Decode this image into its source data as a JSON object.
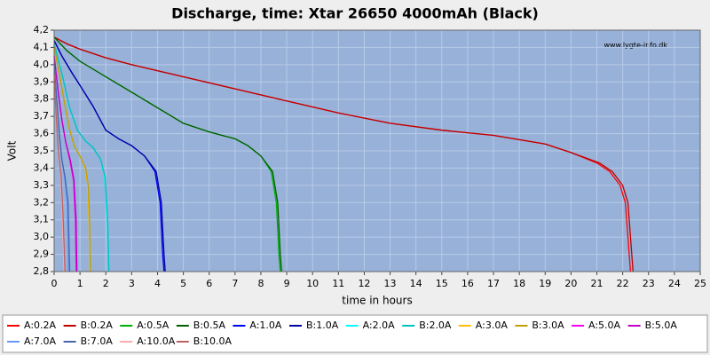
{
  "chart_data": {
    "type": "line",
    "title": "Discharge, time: Xtar 26650 4000mAh (Black)",
    "watermark": "www.lygte-info.dk",
    "xlabel": "time in hours",
    "ylabel": "Volt",
    "xlim": [
      0,
      25
    ],
    "xticks": [
      0,
      1,
      2,
      3,
      4,
      5,
      6,
      7,
      8,
      9,
      10,
      11,
      12,
      13,
      14,
      15,
      16,
      17,
      18,
      19,
      20,
      21,
      22,
      23,
      24,
      25
    ],
    "ylim": [
      2.8,
      4.2
    ],
    "yticks": [
      {
        "value": 2.8,
        "label": "2,8"
      },
      {
        "value": 2.9,
        "label": "2,9"
      },
      {
        "value": 3.0,
        "label": "3,0"
      },
      {
        "value": 3.1,
        "label": "3,1"
      },
      {
        "value": 3.2,
        "label": "3,2"
      },
      {
        "value": 3.3,
        "label": "3,3"
      },
      {
        "value": 3.4,
        "label": "3,4"
      },
      {
        "value": 3.5,
        "label": "3,5"
      },
      {
        "value": 3.6,
        "label": "3,6"
      },
      {
        "value": 3.7,
        "label": "3,7"
      },
      {
        "value": 3.8,
        "label": "3,8"
      },
      {
        "value": 3.9,
        "label": "3,9"
      },
      {
        "value": 4.0,
        "label": "4,0"
      },
      {
        "value": 4.1,
        "label": "4,1"
      },
      {
        "value": 4.2,
        "label": "4,2"
      }
    ],
    "grid": true,
    "series": [
      {
        "name": "A:0.2A",
        "color": "#ff0000",
        "x": [
          0,
          0.5,
          1,
          2,
          3,
          5,
          7,
          9,
          11,
          13,
          15,
          17,
          19,
          20,
          21,
          21.5,
          21.9,
          22.1,
          22.2,
          22.3
        ],
        "values": [
          4.16,
          4.12,
          4.09,
          4.04,
          4.0,
          3.93,
          3.86,
          3.79,
          3.72,
          3.66,
          3.62,
          3.59,
          3.54,
          3.49,
          3.43,
          3.38,
          3.3,
          3.2,
          3.0,
          2.8
        ]
      },
      {
        "name": "B:0.2A",
        "color": "#c00000",
        "x": [
          0,
          0.5,
          1,
          2,
          3,
          5,
          7,
          9,
          11,
          13,
          15,
          17,
          19,
          20,
          21.1,
          21.6,
          22.0,
          22.2,
          22.3,
          22.4
        ],
        "values": [
          4.16,
          4.12,
          4.09,
          4.04,
          4.0,
          3.93,
          3.86,
          3.79,
          3.72,
          3.66,
          3.62,
          3.59,
          3.54,
          3.49,
          3.43,
          3.38,
          3.3,
          3.2,
          3.0,
          2.8
        ]
      },
      {
        "name": "A:0.5A",
        "color": "#00b000",
        "x": [
          0,
          0.5,
          1,
          2,
          3,
          4,
          5,
          6,
          7,
          7.5,
          8,
          8.4,
          8.6,
          8.7,
          8.75
        ],
        "values": [
          4.16,
          4.08,
          4.02,
          3.93,
          3.84,
          3.75,
          3.66,
          3.61,
          3.57,
          3.53,
          3.47,
          3.38,
          3.2,
          2.9,
          2.8
        ]
      },
      {
        "name": "B:0.5A",
        "color": "#006000",
        "x": [
          0,
          0.5,
          1,
          2,
          3,
          4,
          5,
          6,
          7,
          7.5,
          8,
          8.45,
          8.65,
          8.75,
          8.8
        ],
        "values": [
          4.16,
          4.08,
          4.02,
          3.93,
          3.84,
          3.75,
          3.66,
          3.61,
          3.57,
          3.53,
          3.47,
          3.38,
          3.2,
          2.9,
          2.8
        ]
      },
      {
        "name": "A:1.0A",
        "color": "#0000ff",
        "x": [
          0,
          0.3,
          0.7,
          1,
          1.5,
          2,
          2.5,
          3,
          3.5,
          3.9,
          4.1,
          4.2,
          4.25
        ],
        "values": [
          4.14,
          4.05,
          3.95,
          3.88,
          3.76,
          3.62,
          3.57,
          3.53,
          3.47,
          3.38,
          3.2,
          2.9,
          2.8
        ]
      },
      {
        "name": "B:1.0A",
        "color": "#0000a0",
        "x": [
          0,
          0.3,
          0.7,
          1,
          1.5,
          2,
          2.5,
          3,
          3.5,
          3.95,
          4.15,
          4.25,
          4.3
        ],
        "values": [
          4.14,
          4.05,
          3.95,
          3.88,
          3.76,
          3.62,
          3.57,
          3.53,
          3.47,
          3.38,
          3.2,
          2.9,
          2.8
        ]
      },
      {
        "name": "A:2.0A",
        "color": "#00ffff",
        "x": [
          0,
          0.3,
          0.6,
          0.9,
          1.2,
          1.5,
          1.8,
          1.95,
          2.05,
          2.1
        ],
        "values": [
          4.12,
          3.95,
          3.75,
          3.62,
          3.56,
          3.52,
          3.45,
          3.35,
          3.1,
          2.8
        ]
      },
      {
        "name": "B:2.0A",
        "color": "#00c0c0",
        "x": [
          0,
          0.3,
          0.6,
          0.9,
          1.2,
          1.5,
          1.8,
          1.97,
          2.07,
          2.12
        ],
        "values": [
          4.12,
          3.95,
          3.75,
          3.62,
          3.56,
          3.52,
          3.45,
          3.35,
          3.1,
          2.8
        ]
      },
      {
        "name": "A:3.0A",
        "color": "#ffc000",
        "x": [
          0,
          0.2,
          0.4,
          0.6,
          0.8,
          1.0,
          1.2,
          1.3,
          1.35,
          1.38
        ],
        "values": [
          4.1,
          3.95,
          3.78,
          3.62,
          3.52,
          3.47,
          3.4,
          3.3,
          3.1,
          2.8
        ]
      },
      {
        "name": "B:3.0A",
        "color": "#c0a000",
        "x": [
          0,
          0.2,
          0.4,
          0.6,
          0.8,
          1.0,
          1.22,
          1.32,
          1.37,
          1.4
        ],
        "values": [
          4.1,
          3.95,
          3.78,
          3.62,
          3.52,
          3.47,
          3.4,
          3.3,
          3.1,
          2.8
        ]
      },
      {
        "name": "A:5.0A",
        "color": "#ff00ff",
        "x": [
          0,
          0.15,
          0.3,
          0.45,
          0.6,
          0.75,
          0.82,
          0.85
        ],
        "values": [
          4.05,
          3.85,
          3.68,
          3.55,
          3.45,
          3.33,
          3.1,
          2.8
        ]
      },
      {
        "name": "B:5.0A",
        "color": "#c000c0",
        "x": [
          0,
          0.15,
          0.3,
          0.45,
          0.62,
          0.77,
          0.85,
          0.88
        ],
        "values": [
          4.05,
          3.85,
          3.68,
          3.55,
          3.45,
          3.33,
          3.1,
          2.8
        ]
      },
      {
        "name": "A:7.0A",
        "color": "#6699ff",
        "x": [
          0,
          0.1,
          0.2,
          0.3,
          0.4,
          0.5,
          0.55
        ],
        "values": [
          4.0,
          3.8,
          3.6,
          3.45,
          3.35,
          3.2,
          2.8
        ]
      },
      {
        "name": "B:7.0A",
        "color": "#4466aa",
        "x": [
          0,
          0.1,
          0.2,
          0.3,
          0.42,
          0.54,
          0.6
        ],
        "values": [
          4.0,
          3.8,
          3.6,
          3.45,
          3.35,
          3.2,
          2.8
        ]
      },
      {
        "name": "A:10.0A",
        "color": "#ffaaaa",
        "x": [
          0,
          0.08,
          0.15,
          0.25,
          0.32,
          0.38
        ],
        "values": [
          3.95,
          3.7,
          3.5,
          3.35,
          3.1,
          2.8
        ]
      },
      {
        "name": "B:10.0A",
        "color": "#c06060",
        "x": [
          0,
          0.08,
          0.16,
          0.27,
          0.35,
          0.42
        ],
        "values": [
          3.95,
          3.7,
          3.5,
          3.35,
          3.1,
          2.8
        ]
      }
    ]
  }
}
